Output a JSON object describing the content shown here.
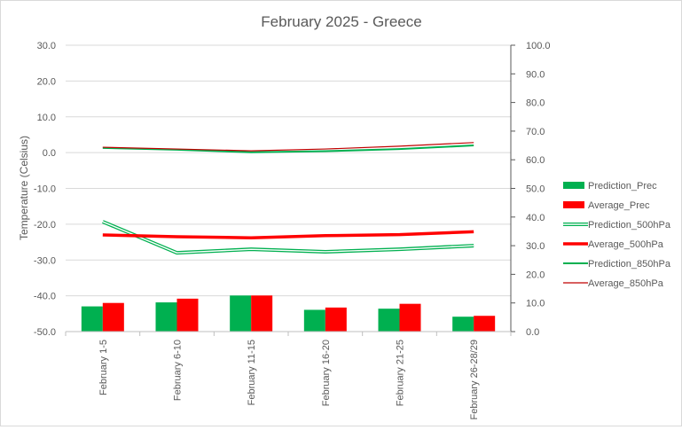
{
  "chart_data": {
    "type": "bar+line",
    "title": "February 2025 - Greece",
    "ylabel": "Temperature  (Celsius)",
    "y2label": "",
    "categories": [
      "February 1-5",
      "February 6-10",
      "February 11-15",
      "February 16-20",
      "February 21-25",
      "February 26-28/29"
    ],
    "ylim": [
      -50,
      30
    ],
    "y2lim": [
      0,
      100
    ],
    "yticks": [
      "30.0",
      "20.0",
      "10.0",
      "0.0",
      "-10.0",
      "-20.0",
      "-30.0",
      "-40.0",
      "-50.0"
    ],
    "y2ticks": [
      "100.0",
      "90.0",
      "80.0",
      "70.0",
      "60.0",
      "50.0",
      "40.0",
      "30.0",
      "20.0",
      "10.0",
      "0.0"
    ],
    "grid": true,
    "legend_position": "right",
    "bar_series": [
      {
        "name": "Prediction_Prec",
        "axis": "right",
        "color": "#00b050",
        "values": [
          8.8,
          10.2,
          12.6,
          7.6,
          8.0,
          5.2
        ]
      },
      {
        "name": "Average_Prec",
        "axis": "right",
        "color": "#ff0000",
        "values": [
          10.0,
          11.5,
          12.6,
          8.4,
          9.7,
          5.5
        ]
      }
    ],
    "line_series": [
      {
        "name": "Prediction_500hPa",
        "axis": "left",
        "color": "#00b050",
        "style": "double",
        "values": [
          -19.3,
          -28.0,
          -27.0,
          -27.7,
          -27.0,
          -26.0
        ]
      },
      {
        "name": "Average_500hPa",
        "axis": "left",
        "color": "#ff0000",
        "style": "thick",
        "values": [
          -23.0,
          -23.5,
          -23.8,
          -23.2,
          -22.9,
          -22.1
        ]
      },
      {
        "name": "Prediction_850hPa",
        "axis": "left",
        "color": "#00b050",
        "style": "medium",
        "values": [
          1.3,
          0.8,
          0.1,
          0.4,
          1.0,
          2.0
        ]
      },
      {
        "name": "Average_850hPa",
        "axis": "left",
        "color": "#c00000",
        "style": "thin",
        "values": [
          1.5,
          1.0,
          0.5,
          1.0,
          1.8,
          2.8
        ]
      }
    ]
  }
}
